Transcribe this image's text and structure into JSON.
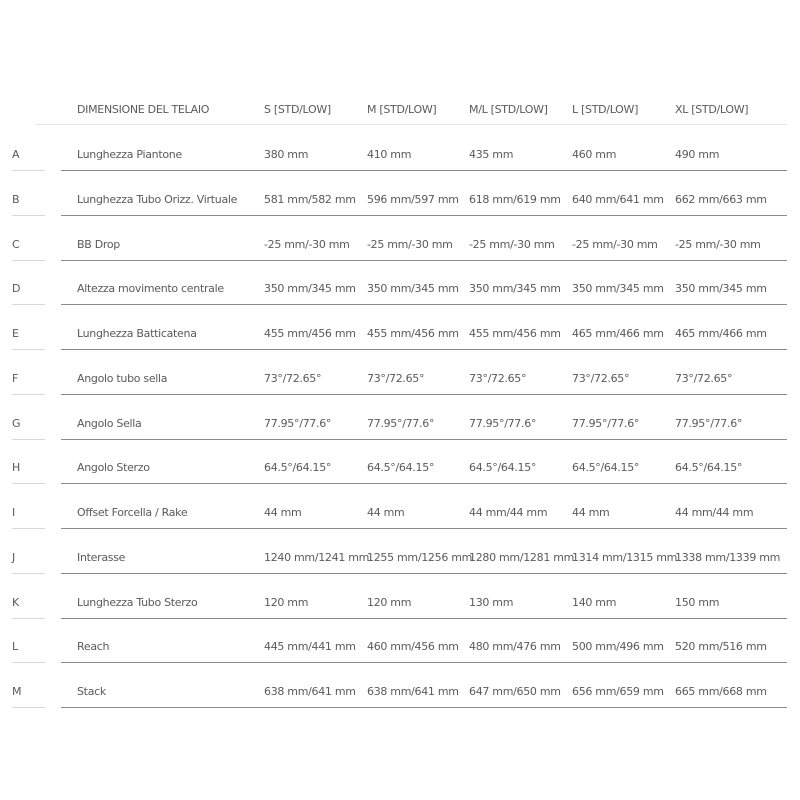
{
  "header": [
    "DIMENSIONE DEL TELAIO",
    "S [STD/LOW]",
    "M [STD/LOW]",
    "M/L [STD/LOW]",
    "L [STD/LOW]",
    "XL [STD/LOW]"
  ],
  "rows": [
    {
      "letter": "A",
      "cells": [
        "Lunghezza Piantone",
        "380 mm",
        "410 mm",
        "435 mm",
        "460 mm",
        "490 mm"
      ]
    },
    {
      "letter": "B",
      "cells": [
        "Lunghezza Tubo Orizz. Virtuale",
        "581 mm/582 mm",
        "596 mm/597 mm",
        "618 mm/619 mm",
        "640 mm/641 mm",
        "662 mm/663 mm"
      ]
    },
    {
      "letter": "C",
      "cells": [
        "BB Drop",
        "-25 mm/-30 mm",
        "-25 mm/-30 mm",
        "-25 mm/-30 mm",
        "-25 mm/-30 mm",
        "-25 mm/-30 mm"
      ]
    },
    {
      "letter": "D",
      "cells": [
        "Altezza movimento centrale",
        "350 mm/345 mm",
        "350 mm/345 mm",
        "350 mm/345 mm",
        "350 mm/345 mm",
        "350 mm/345 mm"
      ]
    },
    {
      "letter": "E",
      "cells": [
        "Lunghezza Batticatena",
        "455 mm/456 mm",
        "455 mm/456 mm",
        "455 mm/456 mm",
        "465 mm/466 mm",
        "465 mm/466 mm"
      ]
    },
    {
      "letter": "F",
      "cells": [
        "Angolo tubo sella",
        "73°/72.65°",
        "73°/72.65°",
        "73°/72.65°",
        "73°/72.65°",
        "73°/72.65°"
      ]
    },
    {
      "letter": "G",
      "cells": [
        "Angolo Sella",
        "77.95°/77.6°",
        "77.95°/77.6°",
        "77.95°/77.6°",
        "77.95°/77.6°",
        "77.95°/77.6°"
      ]
    },
    {
      "letter": "H",
      "cells": [
        "Angolo Sterzo",
        "64.5°/64.15°",
        "64.5°/64.15°",
        "64.5°/64.15°",
        "64.5°/64.15°",
        "64.5°/64.15°"
      ]
    },
    {
      "letter": "I",
      "cells": [
        "Offset Forcella / Rake",
        "44 mm",
        "44 mm",
        "44 mm/44 mm",
        "44 mm",
        "44 mm/44 mm"
      ]
    },
    {
      "letter": "J",
      "cells": [
        "Interasse",
        "1240 mm/1241 mm",
        "1255 mm/1256 mm",
        "1280 mm/1281 mm",
        "1314 mm/1315 mm",
        "1338 mm/1339 mm"
      ]
    },
    {
      "letter": "K",
      "cells": [
        "Lunghezza Tubo Sterzo",
        "120 mm",
        "120 mm",
        "130 mm",
        "140 mm",
        "150 mm"
      ]
    },
    {
      "letter": "L",
      "cells": [
        "Reach",
        "445 mm/441 mm",
        "460 mm/456 mm",
        "480 mm/476 mm",
        "500 mm/496 mm",
        "520 mm/516 mm"
      ]
    },
    {
      "letter": "M",
      "cells": [
        "Stack",
        "638 mm/641 mm",
        "638 mm/641 mm",
        "647 mm/650 mm",
        "656 mm/659 mm",
        "665 mm/668 mm"
      ]
    }
  ]
}
